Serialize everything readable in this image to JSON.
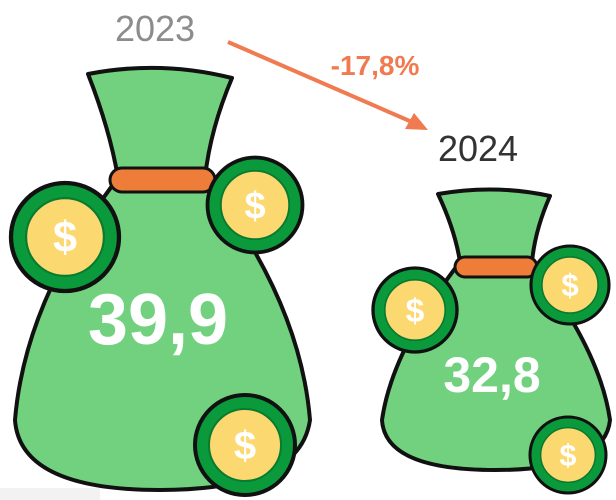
{
  "items": [
    {
      "year": "2023",
      "value": "39,9"
    },
    {
      "year": "2024",
      "value": "32,8"
    }
  ],
  "change": "-17,8%"
}
